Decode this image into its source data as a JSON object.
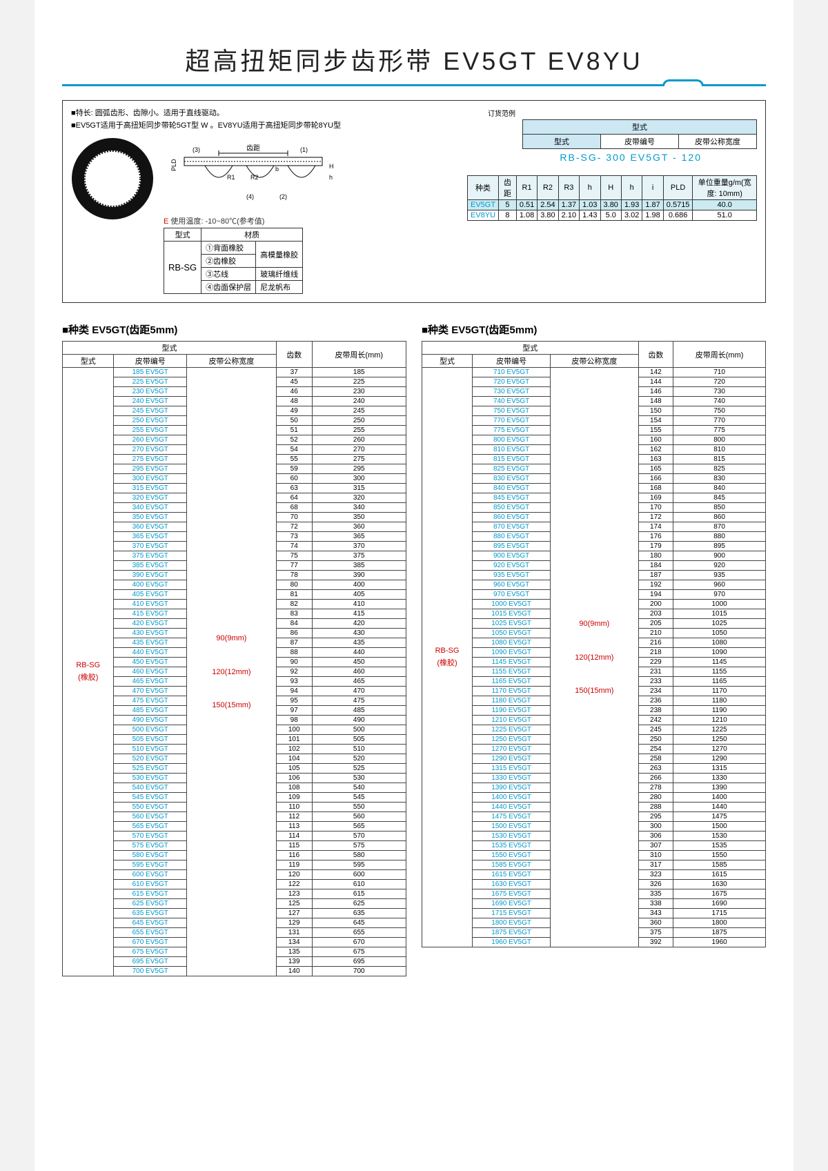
{
  "title": "超高扭矩同步齿形带 EV5GT EV8YU",
  "notes": [
    "■特长: 圆弧齿形、齿隙小。适用于直线驱动。",
    "■EV5GT适用于高扭矩同步带轮5GT型 W   。EV8YU适用于高扭矩同步带轮8YU型"
  ],
  "diagram_labels": {
    "pitch": "齿距",
    "pld": "PLD"
  },
  "temp_line_prefix": "E",
  "temp_line": " 使用温度: -10~80℃(参考值)",
  "material_header": [
    "型式",
    "材质"
  ],
  "material_type": "RB-SG",
  "material_rows": [
    [
      "①背面橡胶",
      "高模量橡胶"
    ],
    [
      "②齿橡胶",
      ""
    ],
    [
      "③芯线",
      "玻璃纤维线"
    ],
    [
      "④齿面保护层",
      "尼龙帆布"
    ]
  ],
  "order_label": "订货范例",
  "order_head_top": "型式",
  "order_headers": [
    "型式",
    "皮带编号",
    "皮带公称宽度"
  ],
  "order_example": "RB-SG- 300 EV5GT  -  120",
  "spec_headers": [
    "种类",
    "齿距",
    "R1",
    "R2",
    "R3",
    "h",
    "H",
    "h",
    "i",
    "PLD",
    "单位重量g/m(宽度: 10mm)"
  ],
  "spec_rows": [
    {
      "name": "EV5GT",
      "vals": [
        "5",
        "0.51",
        "2.54",
        "1.37",
        "1.03",
        "3.80",
        "1.93",
        "1.87",
        "0.5715",
        "40.0"
      ],
      "hl": true
    },
    {
      "name": "EV8YU",
      "vals": [
        "8",
        "1.08",
        "3.80",
        "2.10",
        "1.43",
        "5.0",
        "3.02",
        "1.98",
        "0.686",
        "51.0"
      ],
      "hl": false
    }
  ],
  "section_title": "■种类 EV5GT(齿距5mm)",
  "col_headers_top": "型式",
  "col_headers": [
    "型式",
    "皮带编号",
    "皮带公称宽度",
    "齿数",
    "皮带周长(mm)"
  ],
  "type_label": "RB-SG\n(橡胶)",
  "width_labels": [
    "90(9mm)",
    "120(12mm)",
    "150(15mm)"
  ],
  "left_rows": [
    [
      "185 EV5GT",
      "37",
      "185"
    ],
    [
      "225 EV5GT",
      "45",
      "225"
    ],
    [
      "230 EV5GT",
      "46",
      "230"
    ],
    [
      "240 EV5GT",
      "48",
      "240"
    ],
    [
      "245 EV5GT",
      "49",
      "245"
    ],
    [
      "250 EV5GT",
      "50",
      "250"
    ],
    [
      "255 EV5GT",
      "51",
      "255"
    ],
    [
      "260 EV5GT",
      "52",
      "260"
    ],
    [
      "270 EV5GT",
      "54",
      "270"
    ],
    [
      "275 EV5GT",
      "55",
      "275"
    ],
    [
      "295 EV5GT",
      "59",
      "295"
    ],
    [
      "300 EV5GT",
      "60",
      "300"
    ],
    [
      "315 EV5GT",
      "63",
      "315"
    ],
    [
      "320 EV5GT",
      "64",
      "320"
    ],
    [
      "340 EV5GT",
      "68",
      "340"
    ],
    [
      "350 EV5GT",
      "70",
      "350"
    ],
    [
      "360 EV5GT",
      "72",
      "360"
    ],
    [
      "365 EV5GT",
      "73",
      "365"
    ],
    [
      "370 EV5GT",
      "74",
      "370"
    ],
    [
      "375 EV5GT",
      "75",
      "375"
    ],
    [
      "385 EV5GT",
      "77",
      "385"
    ],
    [
      "390 EV5GT",
      "78",
      "390"
    ],
    [
      "400 EV5GT",
      "80",
      "400"
    ],
    [
      "405 EV5GT",
      "81",
      "405"
    ],
    [
      "410 EV5GT",
      "82",
      "410"
    ],
    [
      "415 EV5GT",
      "83",
      "415"
    ],
    [
      "420 EV5GT",
      "84",
      "420"
    ],
    [
      "430 EV5GT",
      "86",
      "430"
    ],
    [
      "435 EV5GT",
      "87",
      "435"
    ],
    [
      "440 EV5GT",
      "88",
      "440"
    ],
    [
      "450 EV5GT",
      "90",
      "450"
    ],
    [
      "460 EV5GT",
      "92",
      "460"
    ],
    [
      "465 EV5GT",
      "93",
      "465"
    ],
    [
      "470 EV5GT",
      "94",
      "470"
    ],
    [
      "475 EV5GT",
      "95",
      "475"
    ],
    [
      "485 EV5GT",
      "97",
      "485"
    ],
    [
      "490 EV5GT",
      "98",
      "490"
    ],
    [
      "500 EV5GT",
      "100",
      "500"
    ],
    [
      "505 EV5GT",
      "101",
      "505"
    ],
    [
      "510 EV5GT",
      "102",
      "510"
    ],
    [
      "520 EV5GT",
      "104",
      "520"
    ],
    [
      "525 EV5GT",
      "105",
      "525"
    ],
    [
      "530 EV5GT",
      "106",
      "530"
    ],
    [
      "540 EV5GT",
      "108",
      "540"
    ],
    [
      "545 EV5GT",
      "109",
      "545"
    ],
    [
      "550 EV5GT",
      "110",
      "550"
    ],
    [
      "560 EV5GT",
      "112",
      "560"
    ],
    [
      "565 EV5GT",
      "113",
      "565"
    ],
    [
      "570 EV5GT",
      "114",
      "570"
    ],
    [
      "575 EV5GT",
      "115",
      "575"
    ],
    [
      "580 EV5GT",
      "116",
      "580"
    ],
    [
      "595 EV5GT",
      "119",
      "595"
    ],
    [
      "600 EV5GT",
      "120",
      "600"
    ],
    [
      "610 EV5GT",
      "122",
      "610"
    ],
    [
      "615 EV5GT",
      "123",
      "615"
    ],
    [
      "625 EV5GT",
      "125",
      "625"
    ],
    [
      "635 EV5GT",
      "127",
      "635"
    ],
    [
      "645 EV5GT",
      "129",
      "645"
    ],
    [
      "655 EV5GT",
      "131",
      "655"
    ],
    [
      "670 EV5GT",
      "134",
      "670"
    ],
    [
      "675 EV5GT",
      "135",
      "675"
    ],
    [
      "695 EV5GT",
      "139",
      "695"
    ],
    [
      "700 EV5GT",
      "140",
      "700"
    ]
  ],
  "right_rows": [
    [
      "710 EV5GT",
      "142",
      "710"
    ],
    [
      "720 EV5GT",
      "144",
      "720"
    ],
    [
      "730 EV5GT",
      "146",
      "730"
    ],
    [
      "740 EV5GT",
      "148",
      "740"
    ],
    [
      "750 EV5GT",
      "150",
      "750"
    ],
    [
      "770 EV5GT",
      "154",
      "770"
    ],
    [
      "775 EV5GT",
      "155",
      "775"
    ],
    [
      "800 EV5GT",
      "160",
      "800"
    ],
    [
      "810 EV5GT",
      "162",
      "810"
    ],
    [
      "815 EV5GT",
      "163",
      "815"
    ],
    [
      "825 EV5GT",
      "165",
      "825"
    ],
    [
      "830 EV5GT",
      "166",
      "830"
    ],
    [
      "840 EV5GT",
      "168",
      "840"
    ],
    [
      "845 EV5GT",
      "169",
      "845"
    ],
    [
      "850 EV5GT",
      "170",
      "850"
    ],
    [
      "860 EV5GT",
      "172",
      "860"
    ],
    [
      "870 EV5GT",
      "174",
      "870"
    ],
    [
      "880 EV5GT",
      "176",
      "880"
    ],
    [
      "895 EV5GT",
      "179",
      "895"
    ],
    [
      "900 EV5GT",
      "180",
      "900"
    ],
    [
      "920 EV5GT",
      "184",
      "920"
    ],
    [
      "935 EV5GT",
      "187",
      "935"
    ],
    [
      "960 EV5GT",
      "192",
      "960"
    ],
    [
      "970 EV5GT",
      "194",
      "970"
    ],
    [
      "1000 EV5GT",
      "200",
      "1000"
    ],
    [
      "1015 EV5GT",
      "203",
      "1015"
    ],
    [
      "1025 EV5GT",
      "205",
      "1025"
    ],
    [
      "1050 EV5GT",
      "210",
      "1050"
    ],
    [
      "1080 EV5GT",
      "216",
      "1080"
    ],
    [
      "1090 EV5GT",
      "218",
      "1090"
    ],
    [
      "1145 EV5GT",
      "229",
      "1145"
    ],
    [
      "1155 EV5GT",
      "231",
      "1155"
    ],
    [
      "1165 EV5GT",
      "233",
      "1165"
    ],
    [
      "1170 EV5GT",
      "234",
      "1170"
    ],
    [
      "1180 EV5GT",
      "236",
      "1180"
    ],
    [
      "1190 EV5GT",
      "238",
      "1190"
    ],
    [
      "1210 EV5GT",
      "242",
      "1210"
    ],
    [
      "1225 EV5GT",
      "245",
      "1225"
    ],
    [
      "1250 EV5GT",
      "250",
      "1250"
    ],
    [
      "1270 EV5GT",
      "254",
      "1270"
    ],
    [
      "1290 EV5GT",
      "258",
      "1290"
    ],
    [
      "1315 EV5GT",
      "263",
      "1315"
    ],
    [
      "1330 EV5GT",
      "266",
      "1330"
    ],
    [
      "1390 EV5GT",
      "278",
      "1390"
    ],
    [
      "1400 EV5GT",
      "280",
      "1400"
    ],
    [
      "1440 EV5GT",
      "288",
      "1440"
    ],
    [
      "1475 EV5GT",
      "295",
      "1475"
    ],
    [
      "1500 EV5GT",
      "300",
      "1500"
    ],
    [
      "1530 EV5GT",
      "306",
      "1530"
    ],
    [
      "1535 EV5GT",
      "307",
      "1535"
    ],
    [
      "1550 EV5GT",
      "310",
      "1550"
    ],
    [
      "1585 EV5GT",
      "317",
      "1585"
    ],
    [
      "1615 EV5GT",
      "323",
      "1615"
    ],
    [
      "1630 EV5GT",
      "326",
      "1630"
    ],
    [
      "1675 EV5GT",
      "335",
      "1675"
    ],
    [
      "1690 EV5GT",
      "338",
      "1690"
    ],
    [
      "1715 EV5GT",
      "343",
      "1715"
    ],
    [
      "1800 EV5GT",
      "360",
      "1800"
    ],
    [
      "1875 EV5GT",
      "375",
      "1875"
    ],
    [
      "1960 EV5GT",
      "392",
      "1960"
    ]
  ]
}
